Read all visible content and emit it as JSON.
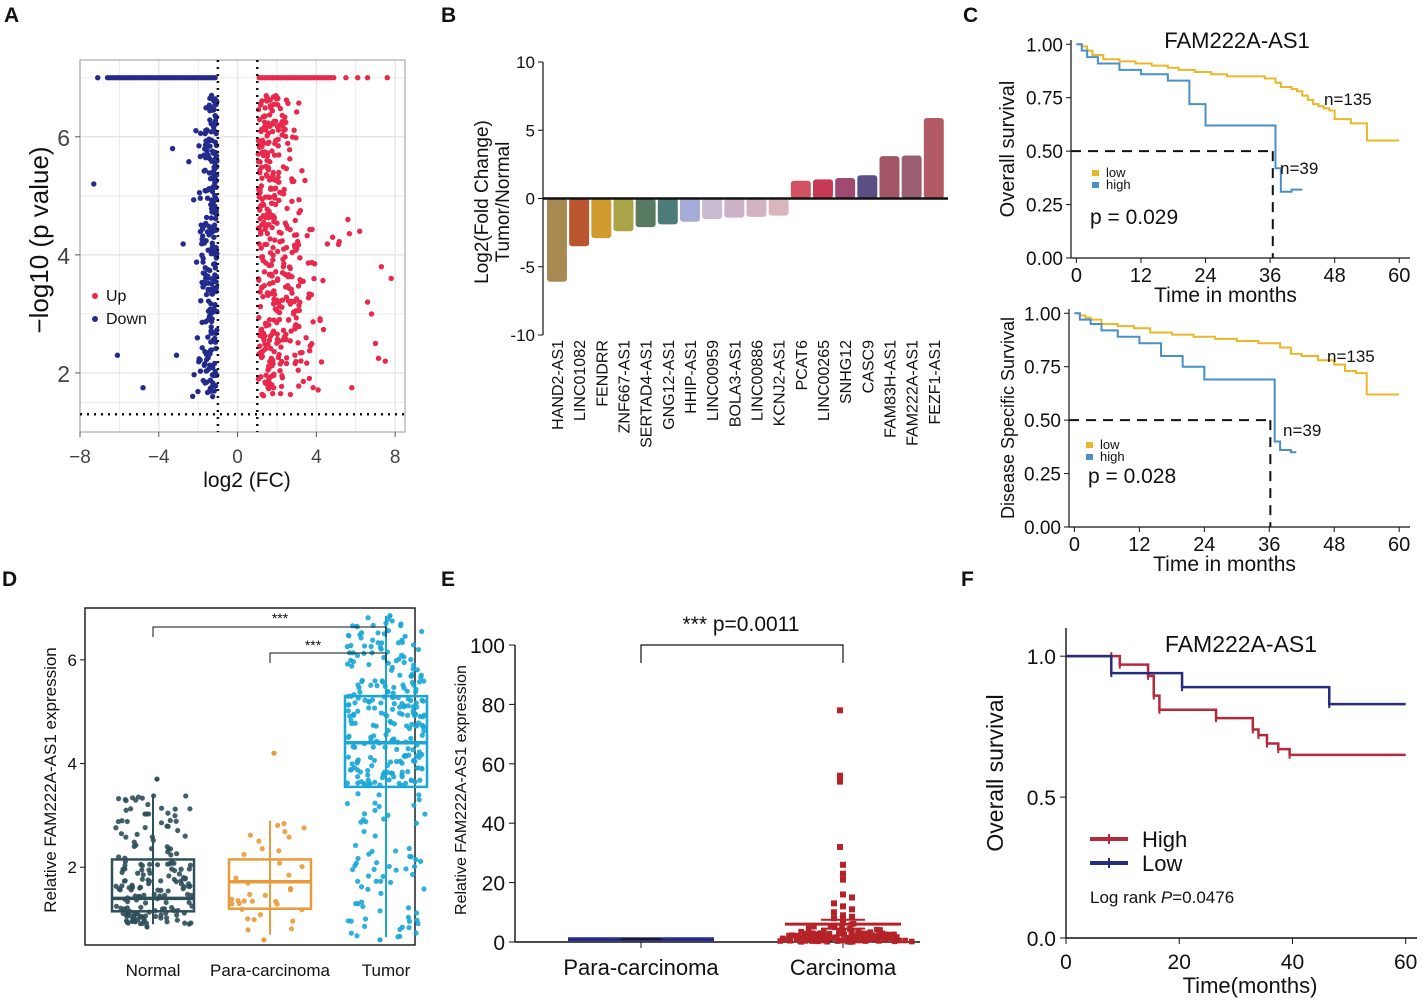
{
  "chart_data": [
    {
      "panel": "A",
      "type": "scatter",
      "xlabel": "log2 (FC)",
      "ylabel": "−log10 (p value)",
      "xlim": [
        -8,
        8.5
      ],
      "ylim": [
        1.0,
        7.3
      ],
      "x_ticks": [
        "−8",
        "−4",
        "0",
        "4",
        "8"
      ],
      "x_tick_values": [
        -8,
        -4,
        0,
        4,
        8
      ],
      "y_ticks": [
        "2",
        "4",
        "6"
      ],
      "y_tick_values": [
        2,
        4,
        6
      ],
      "threshold_x": [
        -1,
        1
      ],
      "threshold_y": 1.3,
      "legend": [
        {
          "label": "Up",
          "color": "#e8294c"
        },
        {
          "label": "Down",
          "color": "#232b8c"
        }
      ],
      "outliers_down": [
        [
          -7.3,
          5.2
        ],
        [
          -6.1,
          2.3
        ],
        [
          -4.8,
          1.75
        ],
        [
          -3.1,
          2.3
        ],
        [
          -3.3,
          5.8
        ],
        [
          -7.1,
          7.0
        ]
      ],
      "outliers_up": [
        [
          5.6,
          4.6
        ],
        [
          6.2,
          4.4
        ],
        [
          7.3,
          3.8
        ],
        [
          7.8,
          3.6
        ],
        [
          6.8,
          3.0
        ],
        [
          7.5,
          2.2
        ],
        [
          5.8,
          1.75
        ],
        [
          6.6,
          3.2
        ],
        [
          7.0,
          2.5
        ]
      ]
    },
    {
      "panel": "B",
      "type": "bar",
      "ylabel": "Log2(Fold Change)\nTumor/Normal",
      "ylim": [
        -10,
        10
      ],
      "y_ticks": [
        "-10",
        "-5",
        "0",
        "5",
        "10"
      ],
      "y_tick_values": [
        -10,
        -5,
        0,
        5,
        10
      ],
      "categories": [
        "HAND2-AS1",
        "LINC01082",
        "FENDRR",
        "ZNF667-AS1",
        "SERTAD4-AS1",
        "GNG12-AS1",
        "HHIP-AS1",
        "LINC00959",
        "BOLA3-AS1",
        "LINC00886",
        "KCNJ2-AS1",
        "PCAT6",
        "LINC00265",
        "SNHG12",
        "CASC9",
        "FAM83H-AS1",
        "FAM222A-AS1",
        "FEZF1-AS1"
      ],
      "values": [
        -6.1,
        -3.5,
        -2.9,
        -2.4,
        -2.1,
        -1.9,
        -1.7,
        -1.5,
        -1.4,
        -1.35,
        -1.25,
        1.3,
        1.4,
        1.5,
        1.7,
        3.1,
        3.15,
        5.9
      ],
      "colors": [
        "#a78952",
        "#b9552f",
        "#d09a2f",
        "#a9a448",
        "#587a63",
        "#4c7c7a",
        "#a6acd8",
        "#c8bcd4",
        "#cdb2c7",
        "#d3b3c1",
        "#d9b6bd",
        "#d05260",
        "#c63a55",
        "#a04a72",
        "#5a4f84",
        "#a25566",
        "#9a5f73",
        "#b35b64"
      ]
    },
    {
      "panel": "C",
      "type": "line",
      "title": "FAM222A-AS1",
      "xlabel": "Time in months",
      "ylabel": "Overall survival",
      "xlim": [
        -1,
        62
      ],
      "ylim": [
        0,
        1.02
      ],
      "x_ticks": [
        "0",
        "12",
        "24",
        "36",
        "48",
        "60"
      ],
      "x_tick_values": [
        0,
        12,
        24,
        36,
        48,
        60
      ],
      "y_ticks": [
        "0.00",
        "0.25",
        "0.50",
        "0.75",
        "1.00"
      ],
      "y_tick_values": [
        0,
        0.25,
        0.5,
        0.75,
        1.0
      ],
      "median_line": {
        "y": 0.5,
        "x": 36.5
      },
      "annotation": "p = 0.029",
      "series": [
        {
          "name": "low",
          "color": "#e8b82a",
          "label": "n=135",
          "x": [
            0,
            1,
            2,
            3,
            5,
            8,
            11,
            14,
            17,
            19,
            22,
            25,
            28,
            32,
            35,
            37,
            38,
            40,
            41,
            42,
            43,
            44,
            45,
            46,
            47,
            48,
            49,
            51,
            54,
            60
          ],
          "y": [
            1.0,
            0.99,
            0.97,
            0.95,
            0.93,
            0.92,
            0.91,
            0.9,
            0.89,
            0.88,
            0.87,
            0.86,
            0.85,
            0.85,
            0.84,
            0.82,
            0.8,
            0.79,
            0.78,
            0.76,
            0.74,
            0.72,
            0.71,
            0.7,
            0.69,
            0.65,
            0.65,
            0.63,
            0.55,
            0.55
          ]
        },
        {
          "name": "high",
          "color": "#4a90c8",
          "label": "n=39",
          "x": [
            0,
            1,
            2,
            4,
            8,
            12,
            17,
            21,
            24,
            36,
            37,
            38,
            40,
            41,
            42
          ],
          "y": [
            1.0,
            0.97,
            0.94,
            0.91,
            0.88,
            0.86,
            0.83,
            0.72,
            0.62,
            0.62,
            0.42,
            0.31,
            0.32,
            0.32,
            0.32
          ]
        }
      ]
    },
    {
      "panel": "C2",
      "type": "line",
      "xlabel": "Time in months",
      "ylabel": "Disease Specific Survival",
      "xlim": [
        -1,
        62
      ],
      "ylim": [
        0,
        1.02
      ],
      "x_ticks": [
        "0",
        "12",
        "24",
        "36",
        "48",
        "60"
      ],
      "x_tick_values": [
        0,
        12,
        24,
        36,
        48,
        60
      ],
      "y_ticks": [
        "0.00",
        "0.25",
        "0.50",
        "0.75",
        "1.00"
      ],
      "y_tick_values": [
        0,
        0.25,
        0.5,
        0.75,
        1.0
      ],
      "median_line": {
        "y": 0.5,
        "x": 36.2
      },
      "annotation": "p = 0.028",
      "series": [
        {
          "name": "low",
          "color": "#e8b82a",
          "label": "n=135",
          "x": [
            0,
            1,
            2,
            3,
            5,
            8,
            11,
            14,
            18,
            22,
            26,
            30,
            34,
            38,
            40,
            42,
            45,
            48,
            50,
            52,
            54,
            60
          ],
          "y": [
            1.0,
            0.99,
            0.98,
            0.97,
            0.95,
            0.94,
            0.93,
            0.91,
            0.9,
            0.89,
            0.88,
            0.87,
            0.86,
            0.84,
            0.81,
            0.8,
            0.78,
            0.76,
            0.73,
            0.72,
            0.62,
            0.62
          ]
        },
        {
          "name": "high",
          "color": "#4a90c8",
          "label": "n=39",
          "x": [
            0,
            1,
            3,
            5,
            8,
            12,
            16,
            20,
            24,
            36,
            37,
            38,
            40,
            41
          ],
          "y": [
            1.0,
            0.97,
            0.95,
            0.92,
            0.89,
            0.86,
            0.8,
            0.75,
            0.69,
            0.69,
            0.4,
            0.36,
            0.35,
            0.35
          ]
        }
      ]
    },
    {
      "panel": "D",
      "type": "box",
      "ylabel": "Relative  FAM222A-AS1  expression",
      "ylim": [
        0.5,
        7
      ],
      "y_ticks": [
        "2",
        "4",
        "6"
      ],
      "y_tick_values": [
        2,
        4,
        6
      ],
      "categories": [
        "Normal",
        "Para-carcinoma",
        "Tumor"
      ],
      "colors": [
        "#2f4f5a",
        "#e99a3b",
        "#1aa6d6"
      ],
      "boxes": [
        {
          "q1": 1.15,
          "median": 1.4,
          "q3": 2.15,
          "whisker_low": 0.9,
          "whisker_high": 3.4,
          "min_pt": 0.85,
          "max_pt": 3.7,
          "n": 180
        },
        {
          "q1": 1.2,
          "median": 1.72,
          "q3": 2.15,
          "whisker_low": 0.7,
          "whisker_high": 2.9,
          "min_pt": 0.6,
          "max_pt": 4.2,
          "n": 35
        },
        {
          "q1": 3.55,
          "median": 4.4,
          "q3": 5.3,
          "whisker_low": 0.65,
          "whisker_high": 6.85,
          "min_pt": 0.6,
          "max_pt": 6.85,
          "n": 320
        }
      ],
      "significance": [
        {
          "from": "Normal",
          "to": "Tumor",
          "label": "***"
        },
        {
          "from": "Para-carcinoma",
          "to": "Tumor",
          "label": "***"
        }
      ]
    },
    {
      "panel": "E",
      "type": "scatter",
      "ylabel": "Relative FAM222A-AS1 expression",
      "ylim": [
        0,
        100
      ],
      "y_ticks": [
        "0",
        "20",
        "40",
        "60",
        "80",
        "100"
      ],
      "y_tick_values": [
        0,
        20,
        40,
        60,
        80,
        100
      ],
      "categories": [
        "Para-carcinoma",
        "Carcinoma"
      ],
      "colors": [
        "#232b8c",
        "#b52228"
      ],
      "para_mean": 1.0,
      "carcinoma_mean": 6.0,
      "carcinoma_sem": 1.5,
      "carcinoma_high_points": [
        78,
        56,
        54,
        32,
        26,
        23,
        21,
        16,
        15,
        13,
        12,
        11,
        10,
        9,
        8.5,
        8,
        7.5
      ],
      "significance": {
        "from": "Para-carcinoma",
        "to": "Carcinoma",
        "label": "*** p=0.0011"
      }
    },
    {
      "panel": "F",
      "type": "line",
      "title": "FAM222A-AS1",
      "xlabel": "Time(months)",
      "ylabel": "Overall survival",
      "xlim": [
        0,
        62
      ],
      "ylim": [
        0,
        1.1
      ],
      "x_ticks": [
        "0",
        "20",
        "40",
        "60"
      ],
      "x_tick_values": [
        0,
        20,
        40,
        60
      ],
      "y_ticks": [
        "0.0",
        "0.5",
        "1.0"
      ],
      "y_tick_values": [
        0,
        0.5,
        1.0
      ],
      "annotation_prefix": "Log rank ",
      "annotation_italic": "P",
      "annotation_suffix": "=0.0476",
      "series": [
        {
          "name": "High",
          "color": "#b52a3a",
          "x": [
            0,
            8,
            9.5,
            14.5,
            15.5,
            16.5,
            26.5,
            33,
            34,
            35.5,
            37.5,
            39.5,
            60
          ],
          "y": [
            1.0,
            1.0,
            0.97,
            0.93,
            0.86,
            0.81,
            0.78,
            0.74,
            0.72,
            0.69,
            0.67,
            0.65,
            0.65
          ]
        },
        {
          "name": "Low",
          "color": "#262d7e",
          "x": [
            0,
            8,
            20.5,
            46.5,
            60
          ],
          "y": [
            1.0,
            0.94,
            0.89,
            0.83,
            0.83
          ]
        }
      ]
    }
  ],
  "panel_labels": [
    "A",
    "B",
    "C",
    "D",
    "E",
    "F"
  ]
}
